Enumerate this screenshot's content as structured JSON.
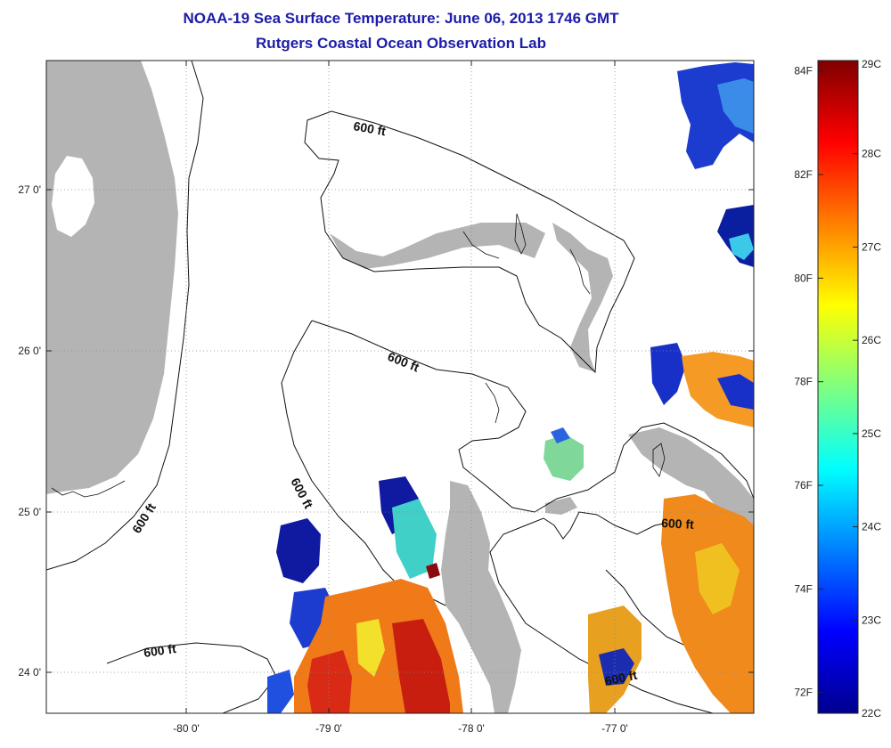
{
  "title": {
    "line1": "NOAA-19 Sea Surface Temperature:  June 06, 2013 1746 GMT",
    "line2": "Rutgers Coastal Ocean Observation Lab"
  },
  "map": {
    "type": "sea-surface-temperature-map",
    "x_axis": {
      "label": "",
      "ticks": [
        "-80 0'",
        "-79 0'",
        "-78 0'",
        "-77 0'"
      ],
      "tick_values": [
        -80,
        -79,
        -78,
        -77
      ]
    },
    "y_axis": {
      "label": "",
      "ticks": [
        "27 0'",
        "26 0'",
        "25 0'",
        "24 0'"
      ],
      "tick_values": [
        27,
        26,
        25,
        24
      ]
    },
    "grid": true,
    "land_color": "#b4b4b4",
    "contour_labels": [
      "600 ft",
      "600 ft",
      "600 ft",
      "600 ft",
      "600 ft",
      "600 ft",
      "600 ft"
    ]
  },
  "colorbar": {
    "colormap": "jet",
    "range_c": [
      22,
      29
    ],
    "celsius_labels": [
      "29C",
      "28C",
      "27C",
      "26C",
      "25C",
      "24C",
      "23C",
      "22C"
    ],
    "celsius_values": [
      29,
      28,
      27,
      26,
      25,
      24,
      23,
      22
    ],
    "fahrenheit_labels": [
      "84F",
      "82F",
      "80F",
      "78F",
      "76F",
      "74F",
      "72F"
    ],
    "fahrenheit_values": [
      84,
      82,
      80,
      78,
      76,
      74,
      72
    ]
  }
}
